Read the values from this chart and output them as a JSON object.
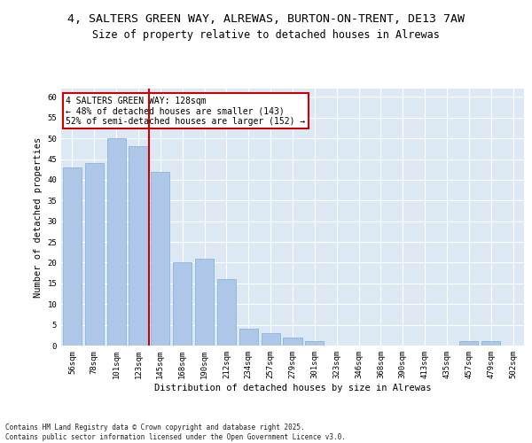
{
  "title1": "4, SALTERS GREEN WAY, ALREWAS, BURTON-ON-TRENT, DE13 7AW",
  "title2": "Size of property relative to detached houses in Alrewas",
  "xlabel": "Distribution of detached houses by size in Alrewas",
  "ylabel": "Number of detached properties",
  "categories": [
    "56sqm",
    "78sqm",
    "101sqm",
    "123sqm",
    "145sqm",
    "168sqm",
    "190sqm",
    "212sqm",
    "234sqm",
    "257sqm",
    "279sqm",
    "301sqm",
    "323sqm",
    "346sqm",
    "368sqm",
    "390sqm",
    "413sqm",
    "435sqm",
    "457sqm",
    "479sqm",
    "502sqm"
  ],
  "values": [
    43,
    44,
    50,
    48,
    42,
    20,
    21,
    16,
    4,
    3,
    2,
    1,
    0,
    0,
    0,
    0,
    0,
    0,
    1,
    1,
    0
  ],
  "bar_color": "#aec6e8",
  "bar_edge_color": "#7aafd4",
  "vline_x": 3.5,
  "vline_color": "#cc0000",
  "annotation_text": "4 SALTERS GREEN WAY: 128sqm\n← 48% of detached houses are smaller (143)\n52% of semi-detached houses are larger (152) →",
  "annotation_box_color": "#ffffff",
  "annotation_box_edge": "#cc0000",
  "ylim": [
    0,
    62
  ],
  "yticks": [
    0,
    5,
    10,
    15,
    20,
    25,
    30,
    35,
    40,
    45,
    50,
    55,
    60
  ],
  "background_color": "#dce9f5",
  "footer": "Contains HM Land Registry data © Crown copyright and database right 2025.\nContains public sector information licensed under the Open Government Licence v3.0.",
  "title_fontsize": 9.5,
  "subtitle_fontsize": 8.5,
  "tick_fontsize": 6.5,
  "ylabel_fontsize": 7.5,
  "xlabel_fontsize": 7.5,
  "annotation_fontsize": 7.0,
  "footer_fontsize": 5.5
}
